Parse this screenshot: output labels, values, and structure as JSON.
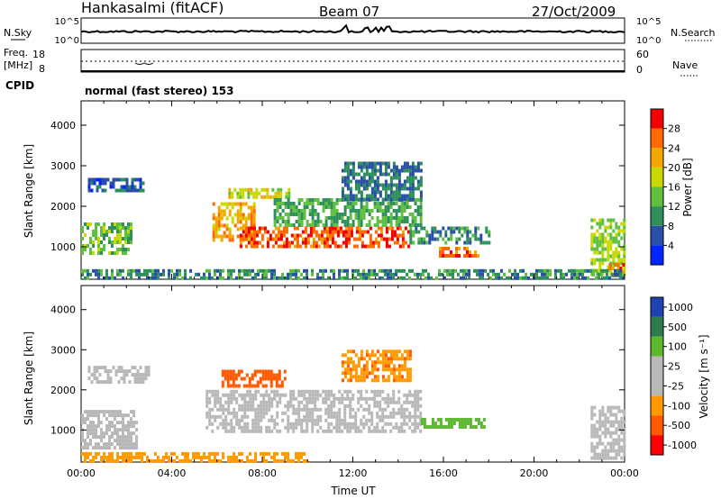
{
  "header": {
    "station": "Hankasalmi (fitACF)",
    "beam": "Beam 07",
    "date": "27/Oct/2009"
  },
  "noise_panel": {
    "left_label": "N.Sky",
    "left_ticks": [
      "10^5",
      "10^0"
    ],
    "right_label": "N.Search",
    "right_ticks": [
      "10^5",
      "10^0"
    ]
  },
  "freq_panel": {
    "left_label_lines": [
      "Freq.",
      "[MHz]"
    ],
    "left_ticks": [
      "18",
      "8"
    ],
    "right_label": "Nave",
    "right_ticks": [
      "60",
      "0"
    ]
  },
  "cpid": {
    "label": "CPID",
    "value": "normal (fast stereo) 153"
  },
  "colors": {
    "power": [
      "#0026ff",
      "#2a4fa8",
      "#2f8f5b",
      "#5fbf3f",
      "#c8d800",
      "#f2a800",
      "#ff6a00",
      "#f00000"
    ],
    "velocity": [
      "#ff0000",
      "#ff5a00",
      "#ff9b00",
      "#b8b8b8",
      "#b8b8b8",
      "#5cb82e",
      "#2e7a4a",
      "#1f43b0"
    ]
  },
  "chart_data": [
    {
      "type": "heatmap",
      "panel": "power",
      "ylabel": "Slant Range [km]",
      "xlabel": "",
      "x_ticks": [
        "00:00",
        "04:00",
        "08:00",
        "12:00",
        "16:00",
        "20:00",
        "00:00"
      ],
      "y_ticks": [
        1000,
        2000,
        3000,
        4000
      ],
      "ylim": [
        200,
        4600
      ],
      "xlim_hours": [
        0,
        24
      ],
      "colorbar": {
        "label": "Power [dB]",
        "ticks": [
          "4",
          "8",
          "12",
          "16",
          "20",
          "24",
          "28"
        ],
        "range": [
          0,
          32
        ]
      },
      "regions": [
        {
          "t0": 0.0,
          "t1": 2.2,
          "r0": 800,
          "r1": 1600,
          "value": 14
        },
        {
          "t0": 0.3,
          "t1": 2.8,
          "r0": 2350,
          "r1": 2700,
          "value": 6
        },
        {
          "t0": 5.8,
          "t1": 7.6,
          "r0": 1200,
          "r1": 2100,
          "value": 22
        },
        {
          "t0": 6.5,
          "t1": 9.2,
          "r0": 2200,
          "r1": 2450,
          "value": 18
        },
        {
          "t0": 7.0,
          "t1": 14.5,
          "r0": 1000,
          "r1": 1500,
          "value": 27
        },
        {
          "t0": 8.5,
          "t1": 15.0,
          "r0": 1500,
          "r1": 2200,
          "value": 12
        },
        {
          "t0": 11.5,
          "t1": 15.0,
          "r0": 2200,
          "r1": 3100,
          "value": 8
        },
        {
          "t0": 14.5,
          "t1": 18.0,
          "r0": 1100,
          "r1": 1500,
          "value": 10
        },
        {
          "t0": 15.8,
          "t1": 17.5,
          "r0": 750,
          "r1": 1000,
          "value": 26
        },
        {
          "t0": 22.5,
          "t1": 24.0,
          "r0": 300,
          "r1": 1700,
          "value": 16
        },
        {
          "t0": 23.3,
          "t1": 24.0,
          "r0": 250,
          "r1": 600,
          "value": 26
        },
        {
          "t0": 0.0,
          "t1": 24.0,
          "r0": 200,
          "r1": 450,
          "value": 10
        }
      ]
    },
    {
      "type": "heatmap",
      "panel": "velocity",
      "ylabel": "Slant Range [km]",
      "xlabel": "Time UT",
      "x_ticks": [
        "00:00",
        "04:00",
        "08:00",
        "12:00",
        "16:00",
        "20:00",
        "00:00"
      ],
      "y_ticks": [
        1000,
        2000,
        3000,
        4000
      ],
      "ylim": [
        200,
        4600
      ],
      "xlim_hours": [
        0,
        24
      ],
      "colorbar": {
        "label": "Velocity [m s⁻¹]",
        "ticks": [
          "1000",
          "500",
          "100",
          "25",
          "-25",
          "-100",
          "-500",
          "-1000"
        ]
      },
      "regions": [
        {
          "t0": 0.0,
          "t1": 2.5,
          "r0": 600,
          "r1": 1500,
          "value": 0
        },
        {
          "t0": 0.3,
          "t1": 3.0,
          "r0": 2200,
          "r1": 2600,
          "value": 0
        },
        {
          "t0": 6.2,
          "t1": 9.0,
          "r0": 2100,
          "r1": 2500,
          "value": -300
        },
        {
          "t0": 5.5,
          "t1": 15.0,
          "r0": 1000,
          "r1": 2000,
          "value": 0
        },
        {
          "t0": 11.5,
          "t1": 14.5,
          "r0": 2200,
          "r1": 3000,
          "value": -80
        },
        {
          "t0": 15.0,
          "t1": 17.8,
          "r0": 1100,
          "r1": 1300,
          "value": 60
        },
        {
          "t0": 0.0,
          "t1": 10.0,
          "r0": 200,
          "r1": 450,
          "value": -60
        },
        {
          "t0": 22.5,
          "t1": 24.0,
          "r0": 300,
          "r1": 1600,
          "value": 0
        }
      ]
    }
  ]
}
